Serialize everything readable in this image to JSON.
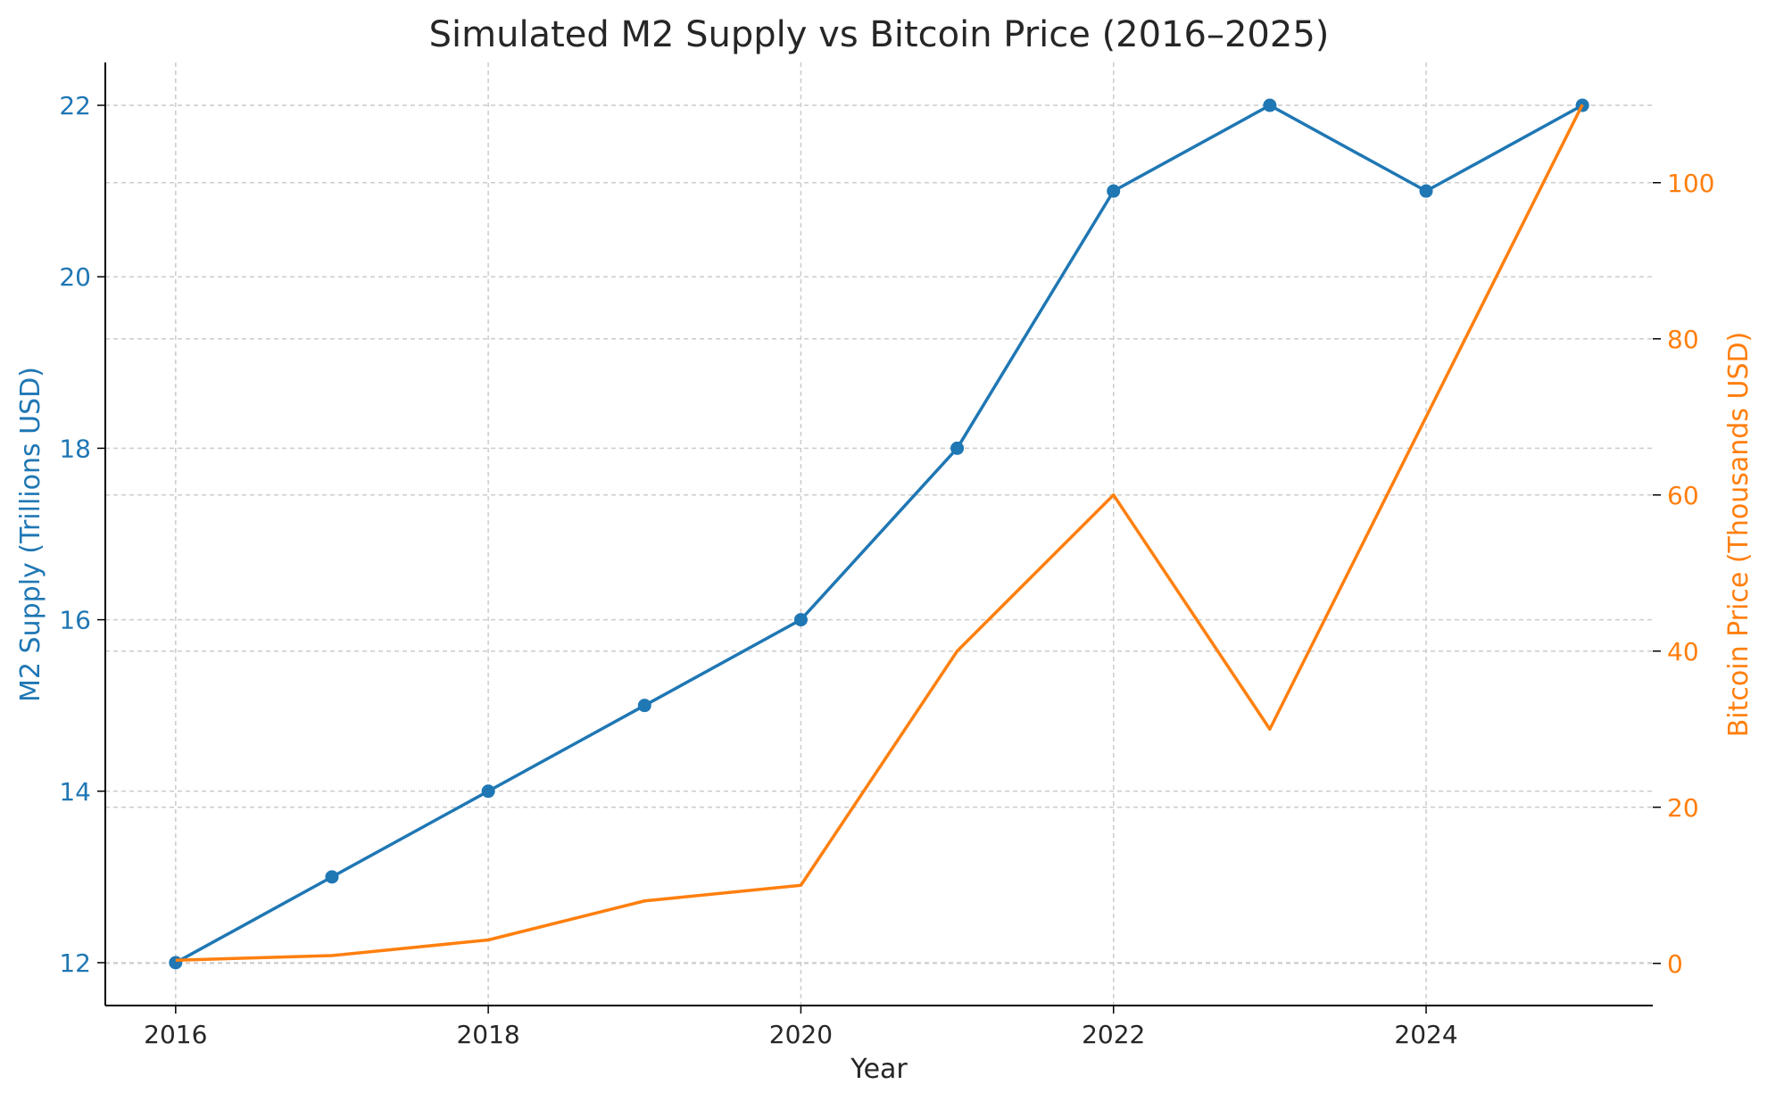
{
  "chart_data": {
    "type": "line",
    "title": "Simulated M2 Supply vs Bitcoin Price (2016–2025)",
    "xlabel": "Year",
    "x": [
      2016,
      2017,
      2018,
      2019,
      2020,
      2021,
      2022,
      2023,
      2024,
      2025
    ],
    "xticks": [
      "2016",
      "2018",
      "2020",
      "2022",
      "2024"
    ],
    "xlim": [
      2015.55,
      2025.45
    ],
    "grid": true,
    "series": [
      {
        "name": "M2 Supply",
        "axis": "left",
        "ylabel": "M2 Supply (Trillions USD)",
        "color": "#1f77b4",
        "marker": "circle",
        "values": [
          12,
          13,
          14,
          15,
          16,
          18,
          21,
          22,
          21,
          22
        ],
        "ylim": [
          11.5,
          22.5
        ],
        "yticks": [
          "12",
          "14",
          "16",
          "18",
          "20",
          "22"
        ]
      },
      {
        "name": "Bitcoin Price",
        "axis": "right",
        "ylabel": "Bitcoin Price (Thousands USD)",
        "color": "#ff7f0e",
        "marker": "none",
        "values": [
          0.4,
          1,
          3,
          8,
          10,
          40,
          60,
          30,
          70,
          110
        ],
        "ylim": [
          -5.4,
          115.4
        ],
        "yticks": [
          "0",
          "20",
          "40",
          "60",
          "80",
          "100"
        ]
      }
    ]
  }
}
